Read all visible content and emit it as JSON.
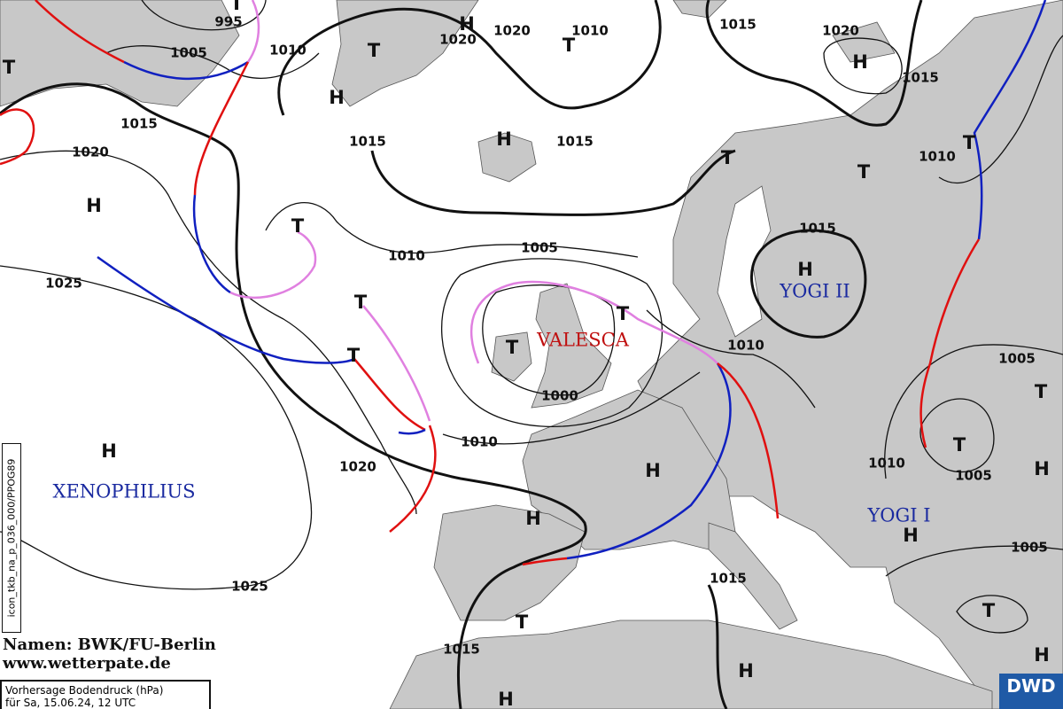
{
  "map": {
    "type": "surface pressure analysis / forecast",
    "colors": {
      "land": "#c8c8c8",
      "warm_front": "#e01010",
      "cold_front": "#1020c0",
      "occlusion": "#e080e0",
      "isobar": "#111111",
      "low_name": "#c01010",
      "high_name": "#1a2aa0"
    },
    "isobar_labels": [
      "995",
      "1005",
      "1010",
      "1015",
      "1020",
      "1025",
      "1020",
      "1025",
      "1015",
      "1010",
      "1005",
      "1000",
      "1010",
      "1020",
      "1020",
      "1010",
      "1015",
      "1015",
      "1020",
      "1015",
      "1010",
      "1015",
      "1010",
      "1005",
      "1010",
      "1005",
      "1005",
      "1015",
      "1015"
    ],
    "highs": [
      "H",
      "H",
      "H",
      "H",
      "H",
      "H",
      "H",
      "H",
      "H",
      "H",
      "H",
      "H",
      "H",
      "H"
    ],
    "lows": [
      "T",
      "T",
      "T",
      "T",
      "T",
      "T",
      "T",
      "T",
      "T",
      "T",
      "T",
      "T",
      "T",
      "T",
      "T",
      "T"
    ],
    "pressure_system_names": [
      {
        "name": "XENOPHILIUS",
        "kind": "high"
      },
      {
        "name": "VALESCA",
        "kind": "low"
      },
      {
        "name": "YOGI II",
        "kind": "high"
      },
      {
        "name": "YOGI I",
        "kind": "high"
      }
    ]
  },
  "credit": {
    "line1": "Namen: BWK/FU-Berlin",
    "line2": "www.wetterpate.de"
  },
  "info": {
    "title": "Vorhersage Bodendruck (hPa)",
    "valid": "für Sa, 15.06.24, 12 UTC"
  },
  "model_label": "icon_tkb_na_p_036_000/PPOG89",
  "logo": "DWD"
}
